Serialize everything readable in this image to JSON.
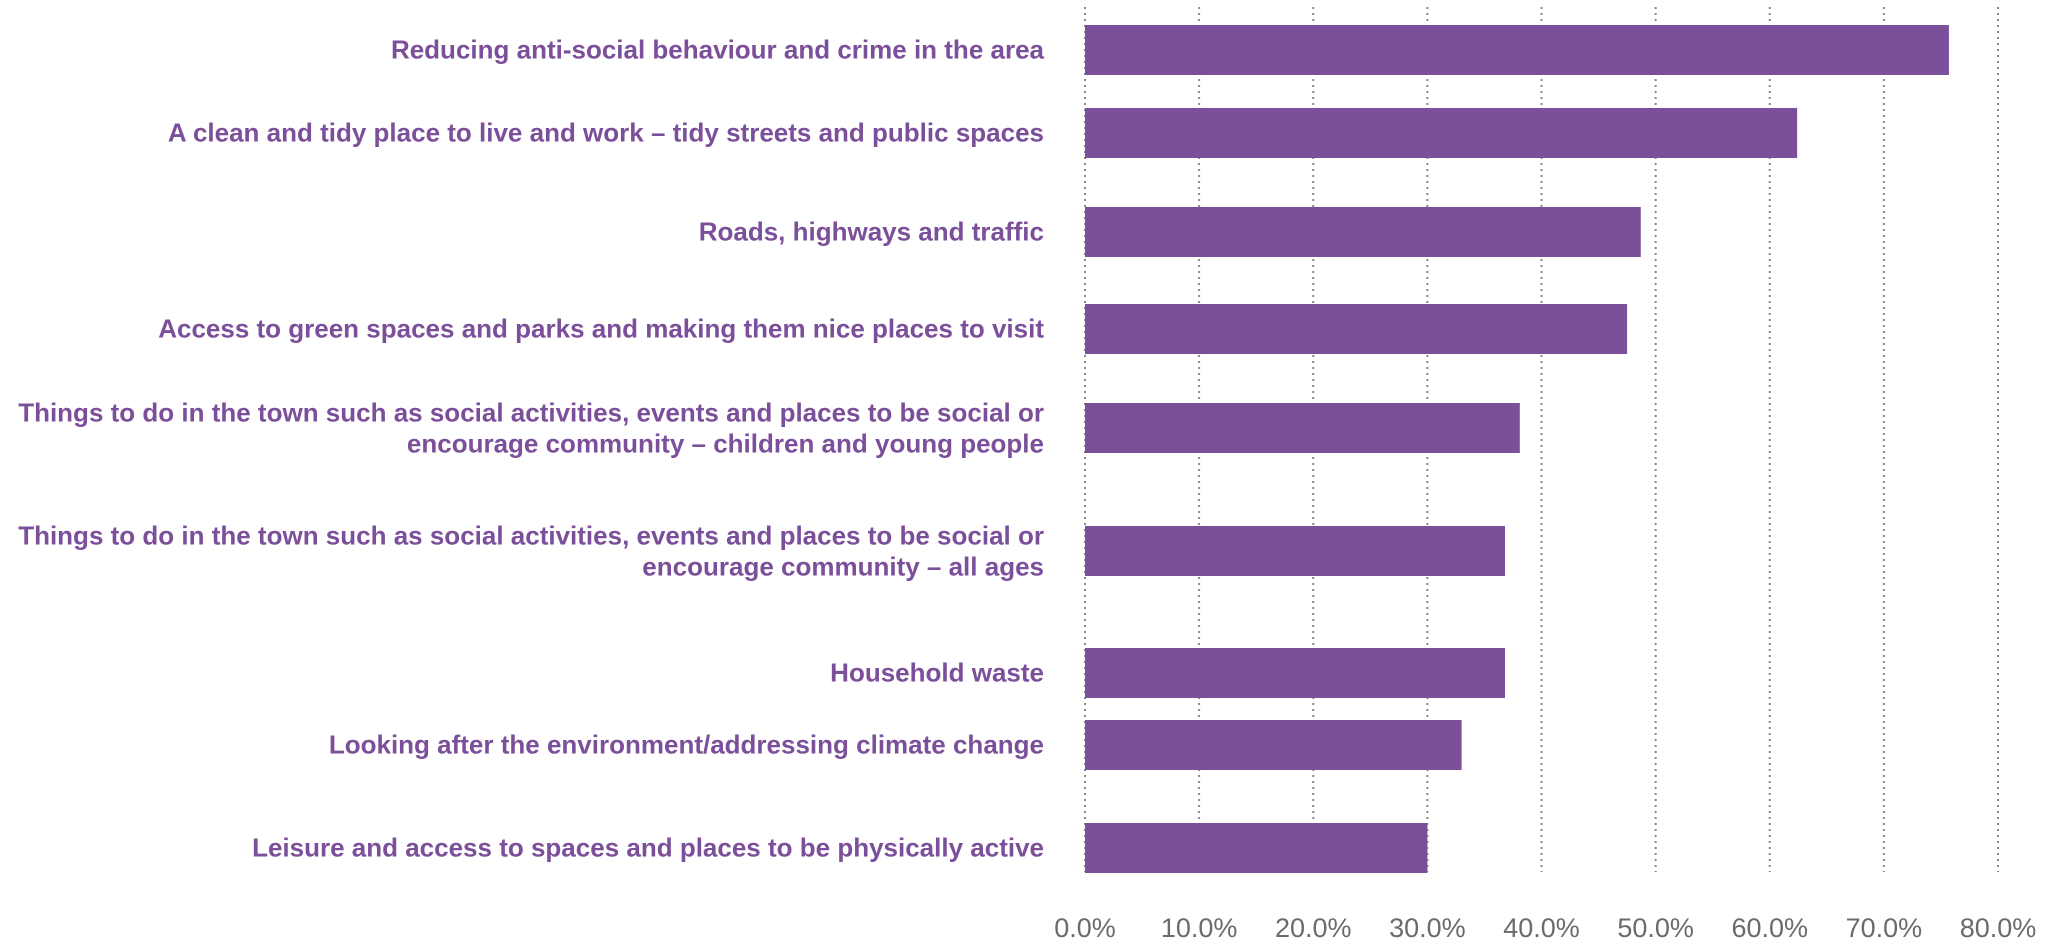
{
  "chart_data": {
    "type": "bar",
    "orientation": "horizontal",
    "categories": [
      "Reducing anti-social behaviour and crime in the area",
      "A clean and tidy place to live and work – tidy streets and public spaces",
      "Roads, highways and traffic",
      "Access to green spaces and parks and making them nice places to visit",
      "Things to do in the town such as social activities, events and places to be social or encourage community – children and young people",
      "Things to do in the town such as social activities, events and places to be social or encourage community – all ages",
      "Household waste",
      "Looking after the environment/addressing climate change",
      "Leisure and access to spaces and places to be physically active"
    ],
    "values": [
      75.7,
      62.4,
      48.7,
      47.5,
      38.1,
      36.8,
      36.8,
      33.0,
      30.0
    ],
    "color": "#7b4f9a",
    "xlim": [
      0,
      80
    ],
    "xticks": [
      {
        "value": 0,
        "label": "0.0%"
      },
      {
        "value": 10,
        "label": "10.0%"
      },
      {
        "value": 20,
        "label": "20.0%"
      },
      {
        "value": 30,
        "label": "30.0%"
      },
      {
        "value": 40,
        "label": "40.0%"
      },
      {
        "value": 50,
        "label": "50.0%"
      },
      {
        "value": 60,
        "label": "60.0%"
      },
      {
        "value": 70,
        "label": "70.0%"
      },
      {
        "value": 80,
        "label": "80.0%"
      }
    ],
    "grid": true
  }
}
